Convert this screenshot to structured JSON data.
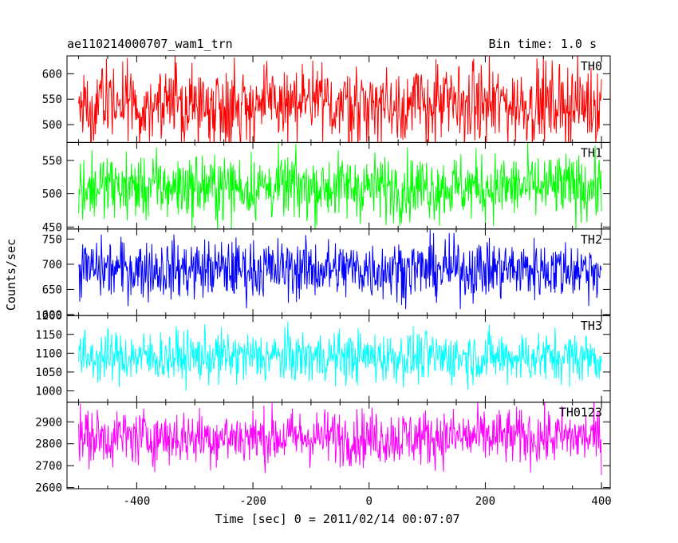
{
  "header": {
    "title": "ae110214000707_wam1_trn",
    "bin_time": "Bin time: 1.0 s"
  },
  "chart_data": {
    "type": "line",
    "xlabel": "Time [sec] 0 = 2011/02/14 00:07:07",
    "ylabel": "Counts/sec",
    "xlim": [
      -520,
      415
    ],
    "x_range": [
      -500,
      400
    ],
    "x_step": 1,
    "xticks": [
      -400,
      -200,
      0,
      200,
      400
    ],
    "panels": [
      {
        "name": "TH0",
        "color": "#ff0000",
        "mean": 540,
        "amplitude": 40,
        "ylim": [
          465,
          635
        ],
        "yticks": [
          500,
          550,
          600
        ]
      },
      {
        "name": "TH1",
        "color": "#00ff00",
        "mean": 510,
        "amplitude": 25,
        "ylim": [
          447,
          577
        ],
        "yticks": [
          450,
          500,
          550
        ]
      },
      {
        "name": "TH2",
        "color": "#0000ff",
        "mean": 690,
        "amplitude": 30,
        "ylim": [
          598,
          770
        ],
        "yticks": [
          600,
          650,
          700,
          750
        ]
      },
      {
        "name": "TH3",
        "color": "#00ffff",
        "mean": 1090,
        "amplitude": 35,
        "ylim": [
          970,
          1200
        ],
        "yticks": [
          1000,
          1050,
          1100,
          1150,
          1200
        ]
      },
      {
        "name": "TH0123",
        "color": "#ff00ff",
        "mean": 2830,
        "amplitude": 65,
        "ylim": [
          2595,
          2990
        ],
        "yticks": [
          2600,
          2700,
          2800,
          2900
        ]
      }
    ]
  }
}
